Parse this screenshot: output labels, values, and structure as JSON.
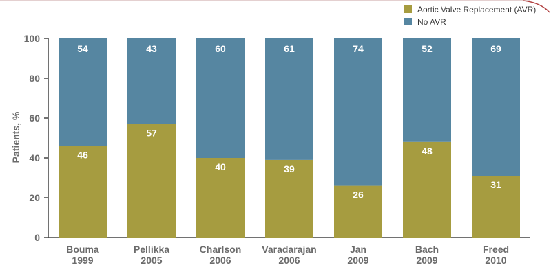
{
  "chart_data": {
    "type": "bar",
    "stacked": true,
    "title": "",
    "xlabel": "",
    "ylabel": "Patients, %",
    "ylim": [
      0,
      100
    ],
    "yticks": [
      0,
      20,
      40,
      60,
      80,
      100
    ],
    "grid": false,
    "legend_position": "top-right",
    "categories": [
      {
        "name": "Bouma",
        "year": "1999"
      },
      {
        "name": "Pellikka",
        "year": "2005"
      },
      {
        "name": "Charlson",
        "year": "2006"
      },
      {
        "name": "Varadarajan",
        "year": "2006"
      },
      {
        "name": "Jan",
        "year": "2009"
      },
      {
        "name": "Bach",
        "year": "2009"
      },
      {
        "name": "Freed",
        "year": "2010"
      }
    ],
    "series": [
      {
        "name": "Aortic Valve Replacement (AVR)",
        "color": "#a69c40",
        "values": [
          46,
          57,
          40,
          39,
          26,
          48,
          31
        ]
      },
      {
        "name": "No AVR",
        "color": "#5686a1",
        "values": [
          54,
          43,
          60,
          61,
          74,
          52,
          69
        ]
      }
    ]
  }
}
